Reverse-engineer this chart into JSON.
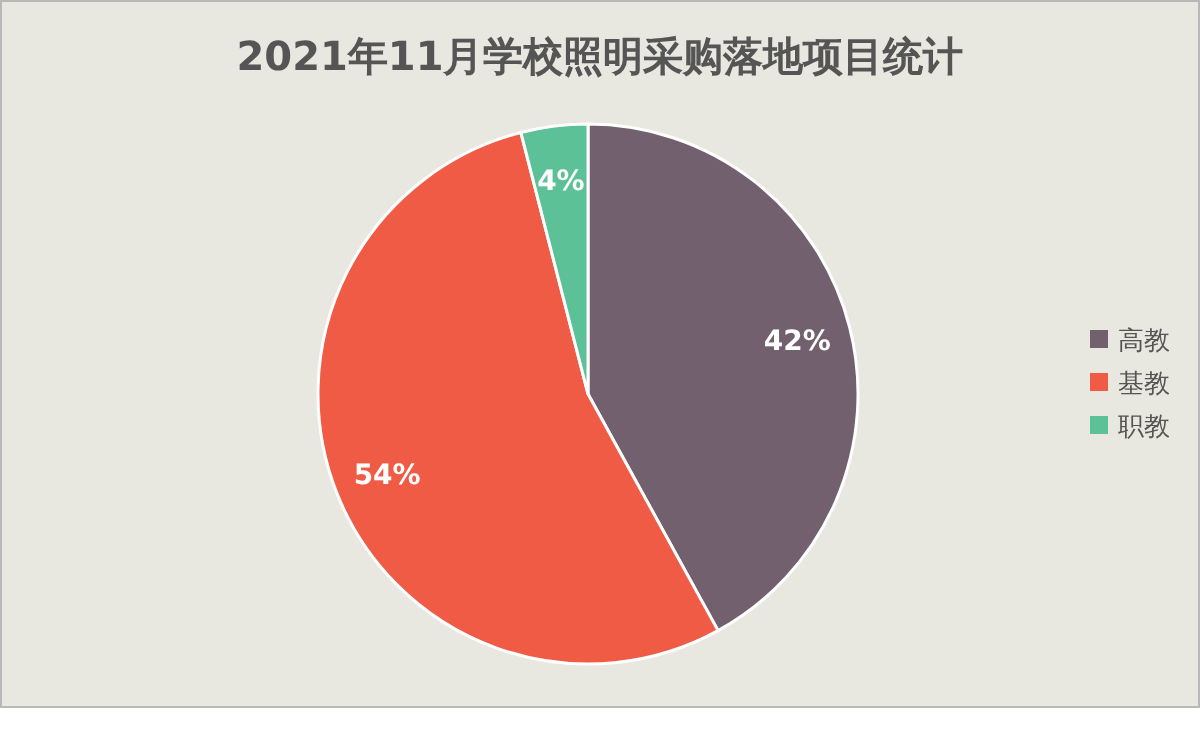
{
  "chart_data": {
    "type": "pie",
    "title": "2021年11月学校照明采购落地项目统计",
    "categories": [
      "高教",
      "基教",
      "职教"
    ],
    "values": [
      42,
      54,
      4
    ],
    "colors": [
      "#72606e",
      "#ef5b44",
      "#5cc196"
    ],
    "value_labels": [
      "42%",
      "54%",
      "4%"
    ],
    "legend": "right"
  }
}
